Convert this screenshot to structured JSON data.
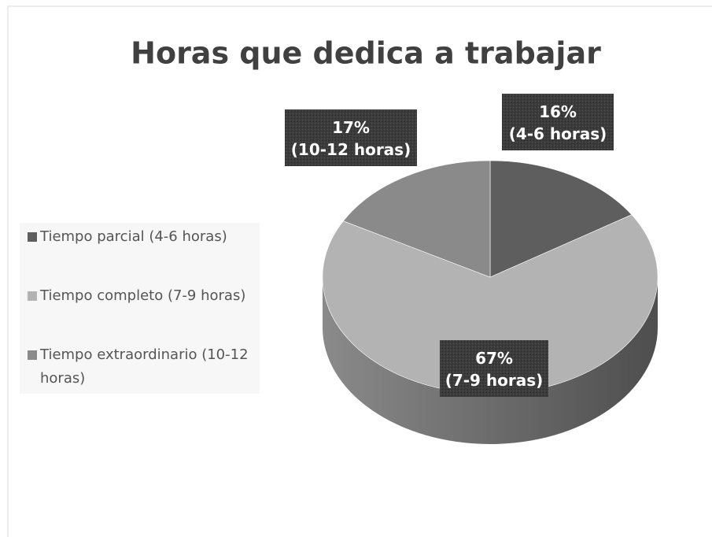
{
  "chart_data": {
    "type": "pie",
    "title": "Horas que dedica a trabajar",
    "categories": [
      "Tiempo parcial (4-6 horas)",
      "Tiempo completo (7-9 horas)",
      "Tiempo extraordinario (10-12 horas)"
    ],
    "values": [
      16,
      67,
      17
    ],
    "value_labels": [
      "16%",
      "67%",
      "17%"
    ],
    "data_label_details": [
      "(4-6 horas)",
      "(7-9 horas)",
      "(10-12 horas)"
    ],
    "colors": [
      "#5e5e5e",
      "#b3b3b3",
      "#8a8a8a"
    ],
    "legend": "left"
  }
}
